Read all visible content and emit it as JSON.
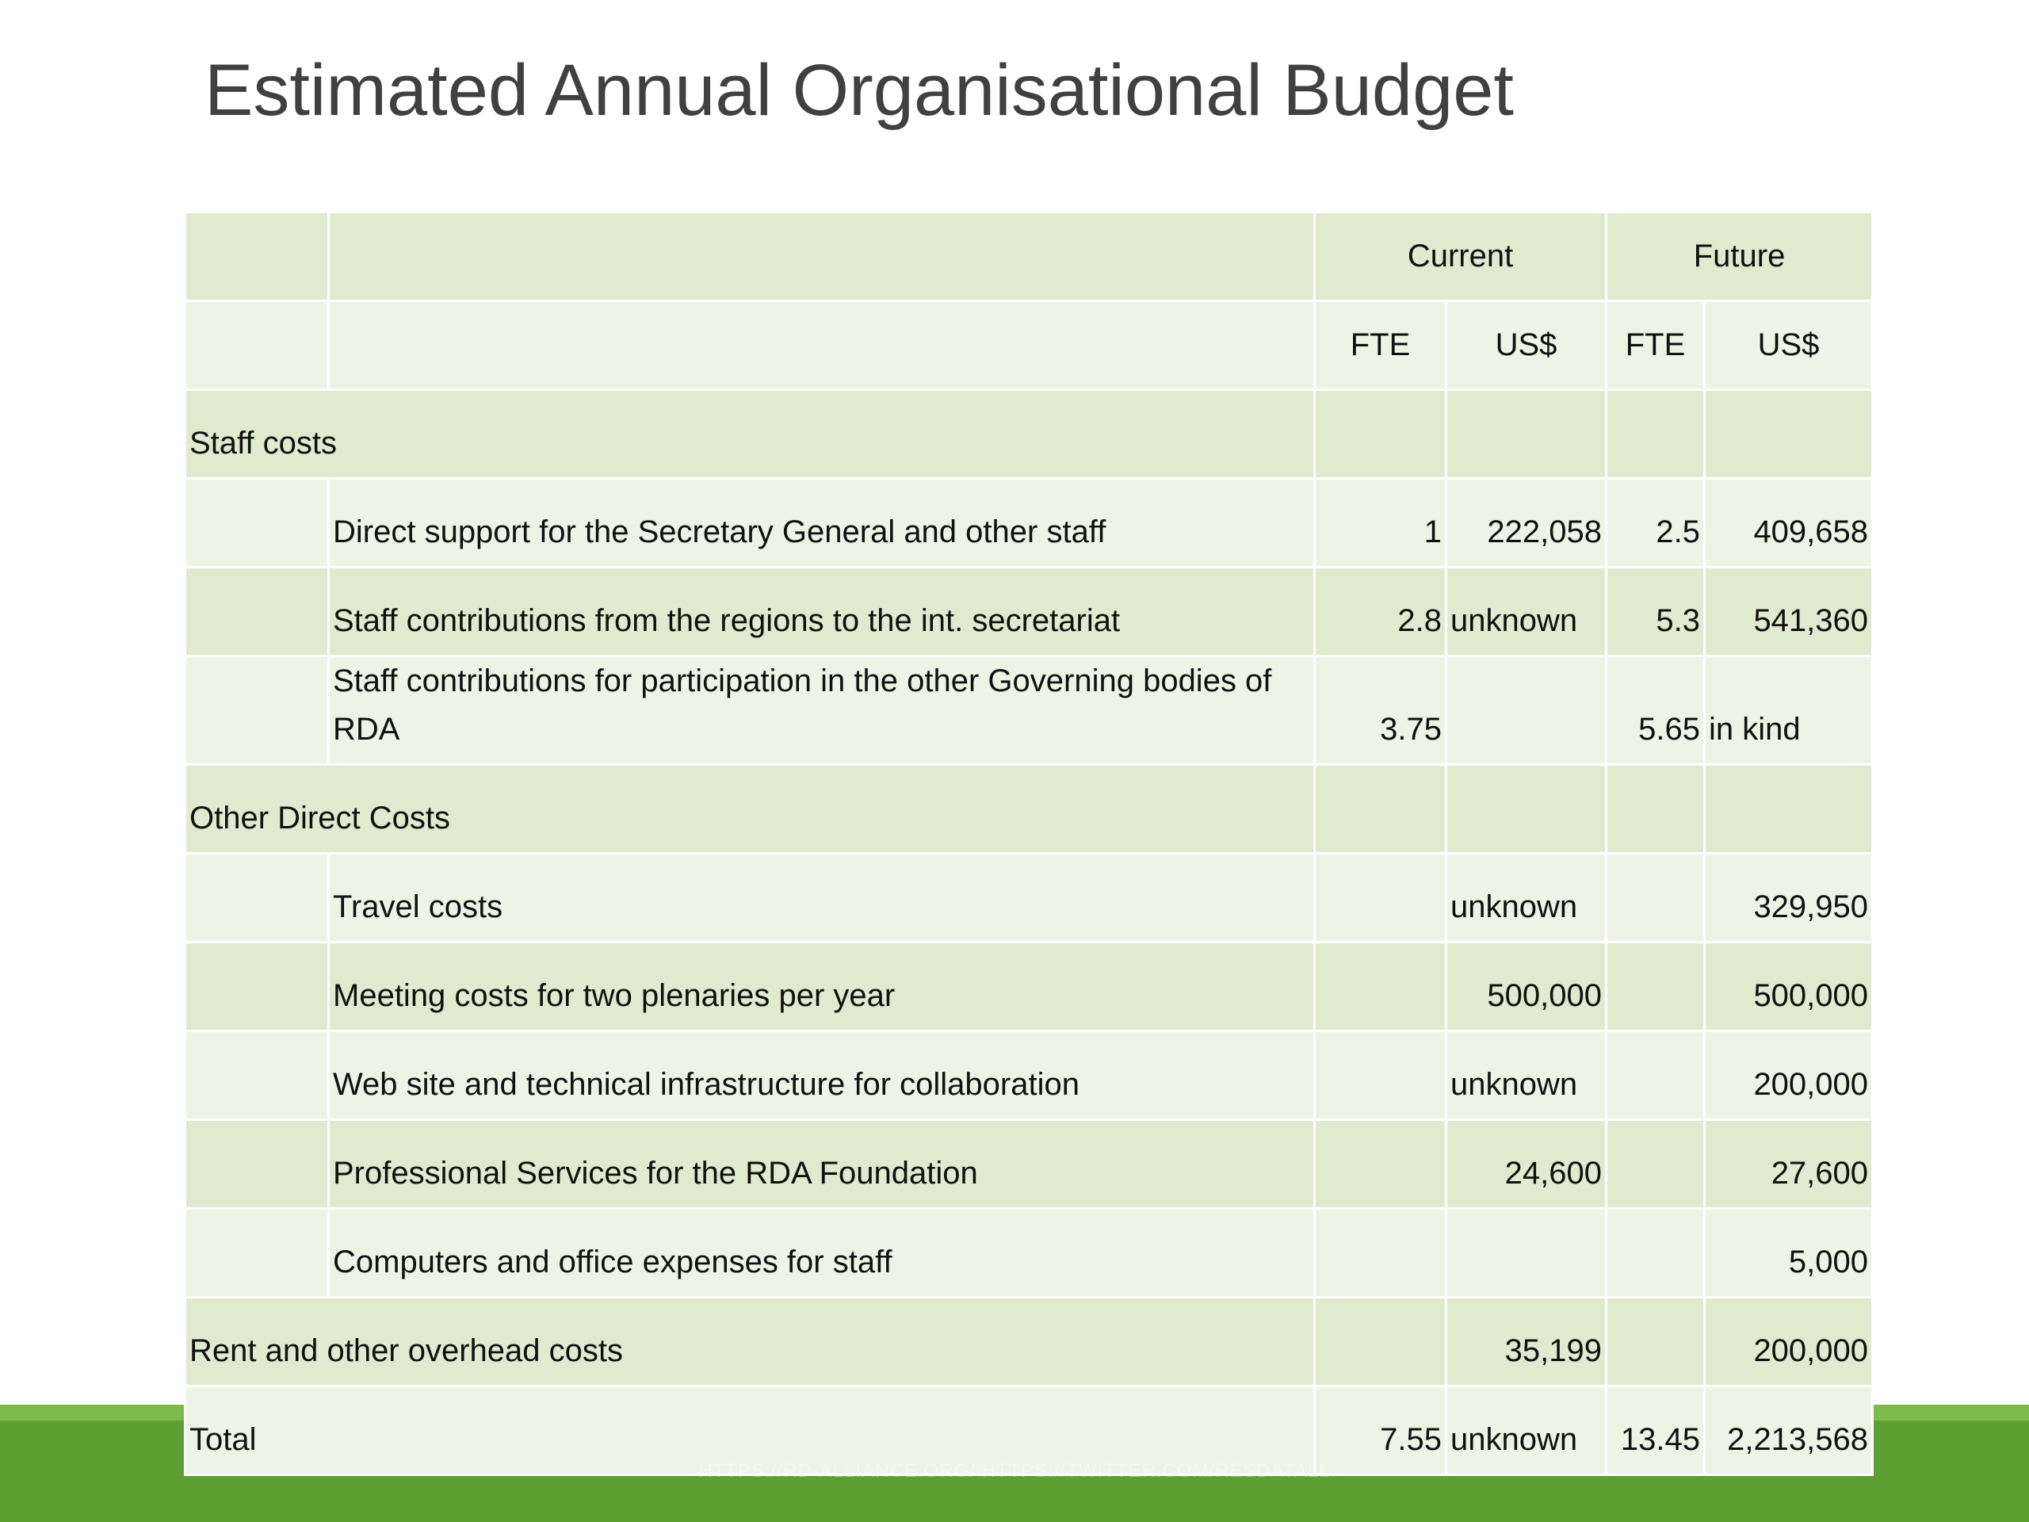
{
  "title": "Estimated Annual Organisational Budget",
  "table": {
    "group_headers": [
      "Current",
      "Future"
    ],
    "column_headers": [
      "FTE",
      "US$",
      "FTE",
      "US$"
    ],
    "rows": [
      {
        "heading": "Staff costs"
      },
      {
        "item": "Direct support for the Secretary General and other staff",
        "cells": [
          "1",
          "222,058",
          "2.5",
          "409,658"
        ]
      },
      {
        "item": "Staff contributions from the regions to the int. secretariat",
        "cells": [
          "2.8",
          "unknown",
          "5.3",
          "541,360"
        ]
      },
      {
        "item": "Staff contributions for participation in the other Governing bodies of RDA",
        "cells": [
          "3.75",
          null,
          "5.65",
          "in kind"
        ]
      },
      {
        "heading": "Other Direct Costs"
      },
      {
        "item": "Travel costs",
        "cells": [
          null,
          "unknown",
          null,
          "329,950"
        ]
      },
      {
        "item": "Meeting costs for two plenaries per year",
        "cells": [
          null,
          "500,000",
          null,
          "500,000"
        ]
      },
      {
        "item": "Web site and technical infrastructure for collaboration",
        "cells": [
          null,
          "unknown",
          null,
          "200,000"
        ]
      },
      {
        "item": "Professional Services for the RDA Foundation",
        "cells": [
          null,
          "24,600",
          null,
          "27,600"
        ]
      },
      {
        "item": "Computers and office expenses for staff",
        "cells": [
          null,
          null,
          null,
          "5,000"
        ]
      },
      {
        "heading": "Rent and other overhead costs",
        "cells": [
          null,
          "35,199",
          null,
          "200,000"
        ]
      },
      {
        "heading": "Total",
        "cells": [
          "7.55",
          "unknown",
          "13.45",
          "2,213,568"
        ]
      }
    ]
  },
  "footer": "HTTPS://RD-ALLIANCE.ORG/ HTTPS://TWITTER.COM/RESDATALL"
}
